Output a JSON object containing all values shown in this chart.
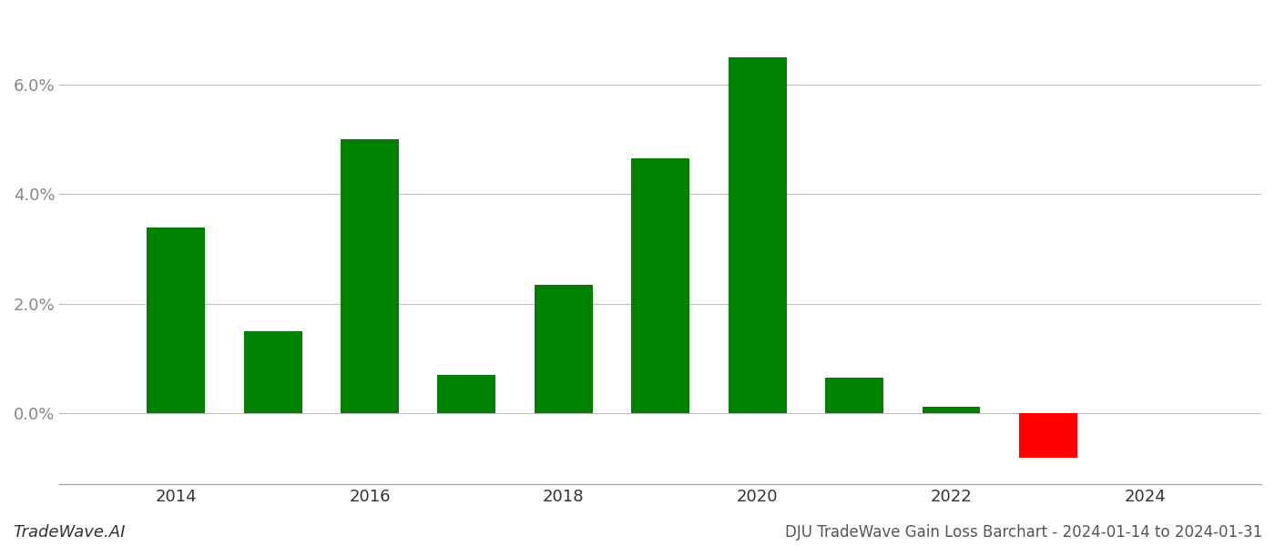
{
  "years": [
    2014,
    2015,
    2016,
    2017,
    2018,
    2019,
    2020,
    2021,
    2022,
    2023
  ],
  "values": [
    0.034,
    0.015,
    0.05,
    0.007,
    0.0235,
    0.0465,
    0.065,
    0.0065,
    0.0012,
    -0.0082
  ],
  "colors": [
    "#008000",
    "#008000",
    "#008000",
    "#008000",
    "#008000",
    "#008000",
    "#008000",
    "#008000",
    "#008000",
    "#ff0000"
  ],
  "title": "DJU TradeWave Gain Loss Barchart - 2024-01-14 to 2024-01-31",
  "watermark": "TradeWave.AI",
  "background_color": "#ffffff",
  "grid_color": "#bbbbbb",
  "yticks": [
    0.0,
    0.02,
    0.04,
    0.06
  ],
  "ylim_min": -0.013,
  "ylim_max": 0.073,
  "bar_width": 0.6,
  "xlim_min": 2012.8,
  "xlim_max": 2025.2,
  "xticks": [
    2014,
    2016,
    2018,
    2020,
    2022,
    2024
  ],
  "tick_fontsize": 13,
  "title_fontsize": 12,
  "watermark_fontsize": 13
}
